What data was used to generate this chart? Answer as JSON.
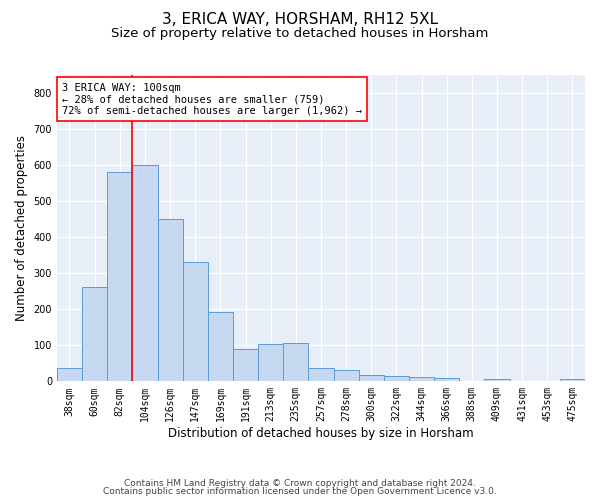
{
  "title1": "3, ERICA WAY, HORSHAM, RH12 5XL",
  "title2": "Size of property relative to detached houses in Horsham",
  "xlabel": "Distribution of detached houses by size in Horsham",
  "ylabel": "Number of detached properties",
  "footer1": "Contains HM Land Registry data © Crown copyright and database right 2024.",
  "footer2": "Contains public sector information licensed under the Open Government Licence v3.0.",
  "bin_labels": [
    "38sqm",
    "60sqm",
    "82sqm",
    "104sqm",
    "126sqm",
    "147sqm",
    "169sqm",
    "191sqm",
    "213sqm",
    "235sqm",
    "257sqm",
    "278sqm",
    "300sqm",
    "322sqm",
    "344sqm",
    "366sqm",
    "388sqm",
    "409sqm",
    "431sqm",
    "453sqm",
    "475sqm"
  ],
  "bar_values": [
    38,
    263,
    580,
    600,
    450,
    330,
    193,
    90,
    103,
    105,
    37,
    32,
    17,
    16,
    13,
    10,
    0,
    6,
    0,
    0,
    7
  ],
  "bar_color": "#c6d9f0",
  "bar_edge_color": "#5b9bd5",
  "vline_x_idx": 2.5,
  "vline_color": "red",
  "annotation_text": "3 ERICA WAY: 100sqm\n← 28% of detached houses are smaller (759)\n72% of semi-detached houses are larger (1,962) →",
  "annotation_box_color": "white",
  "annotation_box_edge": "red",
  "ylim": [
    0,
    850
  ],
  "yticks": [
    0,
    100,
    200,
    300,
    400,
    500,
    600,
    700,
    800
  ],
  "background_color": "#e8eef7",
  "grid_color": "white",
  "title1_fontsize": 11,
  "title2_fontsize": 9.5,
  "annotation_fontsize": 7.5,
  "tick_fontsize": 7,
  "ylabel_fontsize": 8.5,
  "xlabel_fontsize": 8.5,
  "footer_fontsize": 6.5
}
